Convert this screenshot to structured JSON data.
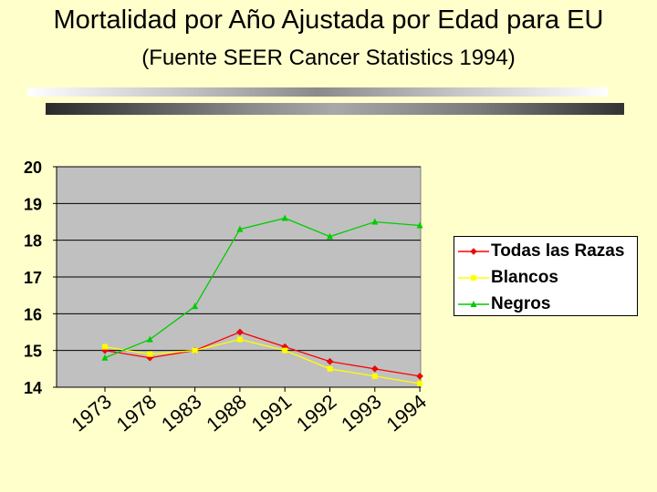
{
  "page": {
    "title": "Mortalidad por Año Ajustada por Edad para EU",
    "subtitle": "(Fuente SEER Cancer Statistics 1994)"
  },
  "chart_data": {
    "type": "line",
    "title": "Mortalidad por Año Ajustada por Edad para EU",
    "subtitle": "(Fuente SEER Cancer Statistics 1994)",
    "xlabel": "",
    "ylabel": "",
    "categories": [
      "1973",
      "1978",
      "1983",
      "1988",
      "1991",
      "1992",
      "1993",
      "1994"
    ],
    "ylim": [
      14,
      20
    ],
    "yticks": [
      "14",
      "15",
      "16",
      "17",
      "18",
      "19",
      "20"
    ],
    "grid": "horizontal",
    "legend_position": "right",
    "series": [
      {
        "name": "Todas las Razas",
        "color": "#ff0000",
        "marker": "diamond",
        "values": [
          15.0,
          14.8,
          15.0,
          15.5,
          15.1,
          14.7,
          14.5,
          14.3
        ]
      },
      {
        "name": "Blancos",
        "color": "#ffff00",
        "marker": "square",
        "values": [
          15.1,
          14.9,
          15.0,
          15.3,
          15.0,
          14.5,
          14.3,
          14.1
        ]
      },
      {
        "name": "Negros",
        "color": "#00cc00",
        "marker": "triangle",
        "values": [
          14.8,
          15.3,
          16.2,
          18.3,
          18.6,
          18.1,
          18.5,
          18.4
        ]
      }
    ]
  }
}
